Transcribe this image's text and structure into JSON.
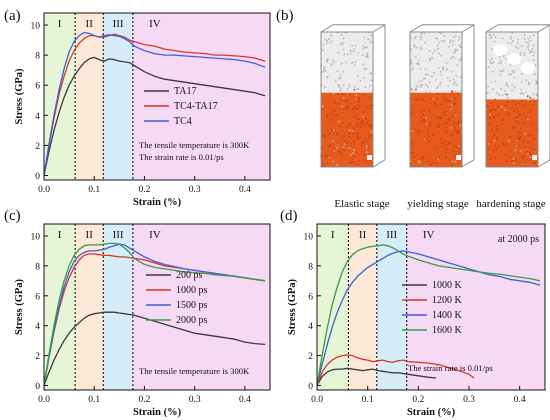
{
  "panel_b": {
    "letter": "(b)",
    "captions": [
      "Elastic stage",
      "yielding stage",
      "hardening stage"
    ],
    "colors": {
      "frame": "#8c8c8c",
      "particles_top": "#cfcfcf",
      "particles_bottom": "#e2571a"
    }
  },
  "chart_data": [
    {
      "id": "a",
      "letter": "(a)",
      "type": "line",
      "xlabel": "Strain (%)",
      "ylabel": "Stress (GPa)",
      "xlim": [
        0,
        0.45
      ],
      "ylim": [
        -0.3,
        10.8
      ],
      "xticks": [
        "0.0",
        "0.1",
        "0.2",
        "0.3",
        "0.4"
      ],
      "yticks": [
        "0",
        "2",
        "4",
        "6",
        "8",
        "10"
      ],
      "stages": [
        {
          "label": "I",
          "from": 0,
          "to": 0.062,
          "color": "#e6f5d6"
        },
        {
          "label": "II",
          "from": 0.062,
          "to": 0.118,
          "color": "#fbe8d6"
        },
        {
          "label": "III",
          "from": 0.118,
          "to": 0.177,
          "color": "#d6ecf8"
        },
        {
          "label": "IV",
          "from": 0.177,
          "to": 0.45,
          "color": "#f6d9f4"
        }
      ],
      "legend": {
        "position": "right-middle"
      },
      "annotations": [
        "The tensile temperature is 300K",
        "The strain rate is 0.01/ps"
      ],
      "series": [
        {
          "name": "TA17",
          "color": "#3a3a3a",
          "x": [
            0,
            0.01,
            0.02,
            0.03,
            0.04,
            0.05,
            0.06,
            0.07,
            0.08,
            0.09,
            0.1,
            0.11,
            0.12,
            0.13,
            0.14,
            0.15,
            0.16,
            0.17,
            0.18,
            0.2,
            0.22,
            0.24,
            0.26,
            0.28,
            0.3,
            0.32,
            0.34,
            0.36,
            0.38,
            0.4,
            0.42,
            0.44
          ],
          "y": [
            0,
            1.6,
            3.0,
            4.2,
            5.2,
            6.0,
            6.6,
            7.1,
            7.5,
            7.75,
            7.85,
            7.7,
            7.6,
            7.75,
            7.7,
            7.6,
            7.55,
            7.5,
            7.3,
            6.9,
            6.6,
            6.4,
            6.3,
            6.2,
            6.1,
            6.0,
            5.9,
            5.8,
            5.7,
            5.6,
            5.5,
            5.3
          ]
        },
        {
          "name": "TC4-TA17",
          "color": "#d9362b",
          "x": [
            0,
            0.01,
            0.02,
            0.03,
            0.04,
            0.05,
            0.06,
            0.07,
            0.08,
            0.09,
            0.1,
            0.11,
            0.12,
            0.13,
            0.14,
            0.15,
            0.16,
            0.17,
            0.18,
            0.2,
            0.22,
            0.24,
            0.26,
            0.28,
            0.3,
            0.32,
            0.34,
            0.36,
            0.38,
            0.4,
            0.42,
            0.44
          ],
          "y": [
            0,
            2.0,
            3.8,
            5.4,
            6.6,
            7.6,
            8.3,
            8.8,
            9.1,
            9.3,
            9.3,
            9.2,
            9.2,
            9.3,
            9.4,
            9.3,
            9.2,
            9.0,
            8.9,
            8.7,
            8.6,
            8.4,
            8.3,
            8.2,
            8.15,
            8.1,
            8.0,
            8.0,
            7.95,
            7.9,
            7.8,
            7.6
          ]
        },
        {
          "name": "TC4",
          "color": "#3f5fd9",
          "x": [
            0,
            0.01,
            0.02,
            0.03,
            0.04,
            0.05,
            0.06,
            0.07,
            0.08,
            0.09,
            0.1,
            0.11,
            0.12,
            0.13,
            0.14,
            0.15,
            0.16,
            0.17,
            0.18,
            0.2,
            0.22,
            0.24,
            0.26,
            0.28,
            0.3,
            0.32,
            0.34,
            0.36,
            0.38,
            0.4,
            0.42,
            0.44
          ],
          "y": [
            0,
            2.1,
            4.0,
            5.7,
            7.1,
            8.2,
            8.9,
            9.3,
            9.5,
            9.45,
            9.3,
            9.2,
            9.3,
            9.35,
            9.3,
            9.25,
            9.1,
            8.9,
            8.6,
            8.3,
            8.1,
            8.0,
            8.0,
            7.95,
            7.9,
            7.85,
            7.8,
            7.75,
            7.7,
            7.6,
            7.45,
            7.2
          ]
        }
      ]
    },
    {
      "id": "c",
      "letter": "(c)",
      "type": "line",
      "xlabel": "Strain (%)",
      "ylabel": "Stress (GPa)",
      "xlim": [
        0,
        0.45
      ],
      "ylim": [
        -0.3,
        10.8
      ],
      "xticks": [
        "0.0",
        "0.1",
        "0.2",
        "0.3",
        "0.4"
      ],
      "yticks": [
        "0",
        "2",
        "4",
        "6",
        "8",
        "10"
      ],
      "stages": [
        {
          "label": "I",
          "from": 0,
          "to": 0.062,
          "color": "#e6f5d6"
        },
        {
          "label": "II",
          "from": 0.062,
          "to": 0.118,
          "color": "#fbe8d6"
        },
        {
          "label": "III",
          "from": 0.118,
          "to": 0.177,
          "color": "#d6ecf8"
        },
        {
          "label": "IV",
          "from": 0.177,
          "to": 0.45,
          "color": "#f6d9f4"
        }
      ],
      "legend": {
        "position": "right-middle"
      },
      "annotations": [
        "The tensile temperature is 300K"
      ],
      "series": [
        {
          "name": "200 ps",
          "color": "#3a3a3a",
          "x": [
            0,
            0.01,
            0.02,
            0.03,
            0.04,
            0.05,
            0.06,
            0.07,
            0.08,
            0.09,
            0.1,
            0.11,
            0.12,
            0.13,
            0.14,
            0.15,
            0.16,
            0.17,
            0.18,
            0.2,
            0.22,
            0.24,
            0.26,
            0.28,
            0.3,
            0.32,
            0.34,
            0.36,
            0.38,
            0.4,
            0.42,
            0.44
          ],
          "y": [
            0,
            0.9,
            1.7,
            2.4,
            3.0,
            3.5,
            3.9,
            4.2,
            4.5,
            4.7,
            4.8,
            4.85,
            4.9,
            4.9,
            4.9,
            4.85,
            4.8,
            4.75,
            4.7,
            4.5,
            4.3,
            4.1,
            3.9,
            3.7,
            3.5,
            3.4,
            3.3,
            3.2,
            3.1,
            2.9,
            2.8,
            2.75
          ]
        },
        {
          "name": "1000 ps",
          "color": "#d9362b",
          "x": [
            0,
            0.01,
            0.02,
            0.03,
            0.04,
            0.05,
            0.06,
            0.07,
            0.08,
            0.09,
            0.1,
            0.11,
            0.12,
            0.13,
            0.14,
            0.15,
            0.16,
            0.17,
            0.18,
            0.2,
            0.22,
            0.24,
            0.26,
            0.28,
            0.3,
            0.32,
            0.34,
            0.36,
            0.38,
            0.4,
            0.42,
            0.44
          ],
          "y": [
            0,
            1.9,
            3.6,
            5.1,
            6.3,
            7.2,
            7.9,
            8.4,
            8.7,
            8.8,
            8.8,
            8.75,
            8.7,
            8.7,
            8.65,
            8.6,
            8.6,
            8.55,
            8.5,
            8.4,
            8.2,
            8.0,
            7.9,
            7.8,
            7.7,
            7.6,
            7.5,
            7.4,
            7.3,
            7.2,
            7.1,
            7.0
          ]
        },
        {
          "name": "1500 ps",
          "color": "#3f5fd9",
          "x": [
            0,
            0.01,
            0.02,
            0.03,
            0.04,
            0.05,
            0.06,
            0.07,
            0.08,
            0.09,
            0.1,
            0.11,
            0.12,
            0.13,
            0.14,
            0.15,
            0.16,
            0.17,
            0.18,
            0.2,
            0.22,
            0.24,
            0.26,
            0.28,
            0.3,
            0.32,
            0.34,
            0.36,
            0.38,
            0.4,
            0.42,
            0.44
          ],
          "y": [
            0,
            1.9,
            3.7,
            5.3,
            6.6,
            7.6,
            8.3,
            8.7,
            8.9,
            9.0,
            9.0,
            9.05,
            9.1,
            9.25,
            9.35,
            9.45,
            9.4,
            9.2,
            9.0,
            8.6,
            8.3,
            8.1,
            7.95,
            7.8,
            7.7,
            7.6,
            7.5,
            7.4,
            7.3,
            7.2,
            7.1,
            7.0
          ]
        },
        {
          "name": "2000 ps",
          "color": "#3b9a48",
          "x": [
            0,
            0.01,
            0.02,
            0.03,
            0.04,
            0.05,
            0.06,
            0.07,
            0.08,
            0.09,
            0.1,
            0.11,
            0.12,
            0.13,
            0.14,
            0.15,
            0.16,
            0.17,
            0.18,
            0.2,
            0.22,
            0.24,
            0.26,
            0.28,
            0.3,
            0.32,
            0.34,
            0.36,
            0.38,
            0.4,
            0.42,
            0.44
          ],
          "y": [
            0,
            2.1,
            4.0,
            5.7,
            7.0,
            8.0,
            8.7,
            9.1,
            9.35,
            9.4,
            9.4,
            9.4,
            9.45,
            9.5,
            9.5,
            9.45,
            9.2,
            8.9,
            8.5,
            8.1,
            7.9,
            7.8,
            7.7,
            7.6,
            7.55,
            7.5,
            7.4,
            7.35,
            7.3,
            7.2,
            7.1,
            7.0
          ]
        }
      ]
    },
    {
      "id": "d",
      "letter": "(d)",
      "type": "line",
      "xlabel": "Strain (%)",
      "ylabel": "Stress (GPa)",
      "xlim": [
        0,
        0.45
      ],
      "ylim": [
        -0.3,
        10.8
      ],
      "xticks": [
        "0.0",
        "0.1",
        "0.2",
        "0.3",
        "0.4"
      ],
      "yticks": [
        "0",
        "2",
        "4",
        "6",
        "8",
        "10"
      ],
      "stages": [
        {
          "label": "I",
          "from": 0,
          "to": 0.062,
          "color": "#e6f5d6"
        },
        {
          "label": "II",
          "from": 0.062,
          "to": 0.118,
          "color": "#fbe8d6"
        },
        {
          "label": "III",
          "from": 0.118,
          "to": 0.177,
          "color": "#d6ecf8"
        },
        {
          "label": "IV",
          "from": 0.177,
          "to": 0.45,
          "color": "#f6d9f4"
        }
      ],
      "legend": {
        "position": "center"
      },
      "annotations": [
        "The strain rate is 0.01/ps"
      ],
      "corner_label": "at 2000 ps",
      "series": [
        {
          "name": "1000 K",
          "color": "#3a3a3a",
          "x": [
            0,
            0.01,
            0.02,
            0.03,
            0.04,
            0.05,
            0.06,
            0.07,
            0.08,
            0.09,
            0.1,
            0.11,
            0.12,
            0.13,
            0.14,
            0.15,
            0.16,
            0.17,
            0.18,
            0.2,
            0.22,
            0.235
          ],
          "y": [
            0,
            0.6,
            0.9,
            1.05,
            1.1,
            1.1,
            1.15,
            1.1,
            1.05,
            1.0,
            1.05,
            1.1,
            1.0,
            0.95,
            0.9,
            0.85,
            0.85,
            0.8,
            0.75,
            0.65,
            0.55,
            0.5
          ]
        },
        {
          "name": "1200 K",
          "color": "#d9362b",
          "x": [
            0,
            0.01,
            0.02,
            0.03,
            0.04,
            0.05,
            0.06,
            0.07,
            0.08,
            0.09,
            0.1,
            0.11,
            0.12,
            0.13,
            0.14,
            0.15,
            0.16,
            0.17,
            0.18,
            0.2,
            0.22,
            0.24,
            0.26,
            0.28,
            0.3,
            0.31
          ],
          "y": [
            0,
            0.9,
            1.4,
            1.7,
            1.9,
            2.0,
            2.05,
            2.0,
            1.85,
            1.75,
            1.7,
            1.6,
            1.65,
            1.7,
            1.6,
            1.55,
            1.65,
            1.7,
            1.6,
            1.55,
            1.5,
            1.4,
            1.2,
            1.0,
            0.75,
            0.5
          ]
        },
        {
          "name": "1400 K",
          "color": "#3f5fd9",
          "x": [
            0,
            0.01,
            0.02,
            0.03,
            0.04,
            0.05,
            0.06,
            0.07,
            0.08,
            0.09,
            0.1,
            0.11,
            0.12,
            0.13,
            0.14,
            0.15,
            0.16,
            0.17,
            0.18,
            0.2,
            0.22,
            0.24,
            0.26,
            0.28,
            0.3,
            0.32,
            0.34,
            0.36,
            0.38,
            0.4,
            0.42,
            0.44
          ],
          "y": [
            0,
            1.4,
            2.7,
            3.9,
            4.9,
            5.7,
            6.4,
            6.9,
            7.3,
            7.6,
            7.9,
            8.1,
            8.3,
            8.5,
            8.7,
            8.85,
            8.95,
            9.0,
            8.95,
            8.8,
            8.6,
            8.4,
            8.2,
            8.0,
            7.8,
            7.6,
            7.4,
            7.3,
            7.1,
            7.0,
            6.9,
            6.7
          ]
        },
        {
          "name": "1600 K",
          "color": "#3b9a48",
          "x": [
            0,
            0.01,
            0.02,
            0.03,
            0.04,
            0.05,
            0.06,
            0.07,
            0.08,
            0.09,
            0.1,
            0.11,
            0.12,
            0.13,
            0.14,
            0.15,
            0.16,
            0.17,
            0.18,
            0.2,
            0.22,
            0.24,
            0.26,
            0.28,
            0.3,
            0.32,
            0.34,
            0.36,
            0.38,
            0.4,
            0.42,
            0.44
          ],
          "y": [
            0,
            2.0,
            3.8,
            5.4,
            6.6,
            7.6,
            8.3,
            8.75,
            9.0,
            9.15,
            9.25,
            9.3,
            9.35,
            9.4,
            9.35,
            9.2,
            9.0,
            8.8,
            8.65,
            8.4,
            8.2,
            8.0,
            7.9,
            7.8,
            7.7,
            7.6,
            7.5,
            7.45,
            7.35,
            7.25,
            7.15,
            7.0
          ]
        }
      ]
    }
  ]
}
